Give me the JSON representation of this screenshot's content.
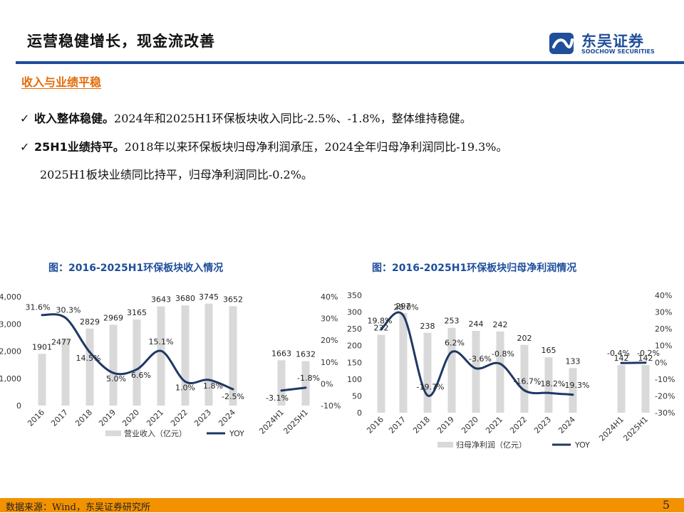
{
  "header": {
    "title": "运营稳健增长，现金流改善",
    "logo_cn": "东吴证券",
    "logo_en": "SOOCHOW SECURITIES"
  },
  "section": {
    "subtitle": "收入与业绩平稳"
  },
  "bullets": [
    {
      "check": "✓",
      "bold": "收入整体稳健。",
      "text": "2024年和2025H1环保板块收入同比-2.5%、-1.8%，整体维持稳健。"
    },
    {
      "check": "✓",
      "bold": "25H1业绩持平。",
      "text": "2018年以来环保板块归母净利润承压，2024全年归母净利润同比-19.3%。"
    },
    {
      "text": "2025H1板块业绩同比持平，归母净利润同比-0.2%。"
    }
  ],
  "footer": {
    "source": "数据来源：Wind，东吴证券研究所",
    "page": "5"
  },
  "colors": {
    "bar": "#d9d9d9",
    "line": "#1f3864",
    "accent": "#f39200",
    "brand": "#1f4e9b"
  },
  "chart_data": [
    {
      "type": "bar",
      "title": "图：2016-2025H1环保板块收入情况",
      "categories": [
        "2016",
        "2017",
        "2018",
        "2019",
        "2020",
        "2021",
        "2022",
        "2023",
        "2024",
        "2024H1",
        "2025H1"
      ],
      "series": [
        {
          "name": "营业收入（亿元）",
          "type": "bar",
          "axis": "left",
          "values": [
            1901,
            2477,
            2829,
            2969,
            3165,
            3643,
            3680,
            3745,
            3652,
            1663,
            1632
          ],
          "labels": [
            "1901",
            "",
            "2829",
            "2969",
            "3165",
            "3643",
            "3680",
            "3745",
            "3652",
            "1663",
            "1632"
          ]
        },
        {
          "name": "YOY",
          "type": "line",
          "axis": "right",
          "values": [
            31.6,
            30.3,
            14.5,
            5.0,
            6.6,
            15.1,
            1.0,
            1.8,
            -2.5,
            -3.1,
            -1.8
          ],
          "labels": [
            "31.6%",
            "30.3%",
            "14.5%",
            "5.0%",
            "6.6%",
            "15.1%",
            "1.0%",
            "1.8%",
            "-2.5%",
            "-3.1%",
            "-1.8%"
          ]
        }
      ],
      "overlap_label": "2477",
      "ylim_left": [
        0,
        4000
      ],
      "left_ticks": [
        "0",
        "1,000",
        "2,000",
        "3,000",
        "4,000"
      ],
      "ylim_right": [
        -10,
        40
      ],
      "right_ticks": [
        "-10%",
        "0%",
        "10%",
        "20%",
        "30%",
        "40%"
      ],
      "legend": [
        "营业收入（亿元）",
        "YOY"
      ]
    },
    {
      "type": "bar",
      "title": "图：2016-2025H1环保板块归母净利润情况",
      "categories": [
        "2016",
        "2017",
        "2018",
        "2019",
        "2020",
        "2021",
        "2022",
        "2023",
        "2024",
        "2024H1",
        "2025H1"
      ],
      "series": [
        {
          "name": "归母净利润（亿元）",
          "type": "bar",
          "axis": "left",
          "values": [
            232,
            297,
            238,
            253,
            244,
            242,
            202,
            165,
            133,
            142,
            142
          ],
          "labels": [
            "232",
            "297",
            "238",
            "253",
            "244",
            "242",
            "202",
            "165",
            "133",
            "142",
            "142"
          ]
        },
        {
          "name": "YOY",
          "type": "line",
          "axis": "right",
          "values": [
            19.8,
            28.0,
            -19.7,
            6.2,
            -3.6,
            -0.8,
            -16.7,
            -18.2,
            -19.3,
            -0.4,
            -0.2
          ],
          "labels": [
            "19.8%",
            "28.0%",
            "-19.7%",
            "6.2%",
            "-3.6%",
            "-0.8%",
            "-16.7%",
            "-18.2%",
            "-19.3%",
            "-0.4%",
            "-0.2%"
          ]
        }
      ],
      "ylim_left": [
        0,
        350
      ],
      "left_ticks": [
        "0",
        "50",
        "100",
        "150",
        "200",
        "250",
        "300",
        "350"
      ],
      "ylim_right": [
        -30,
        40
      ],
      "right_ticks": [
        "-30%",
        "-20%",
        "-10%",
        "0%",
        "10%",
        "20%",
        "30%",
        "40%"
      ],
      "legend": [
        "归母净利润（亿元）",
        "YOY"
      ]
    }
  ]
}
